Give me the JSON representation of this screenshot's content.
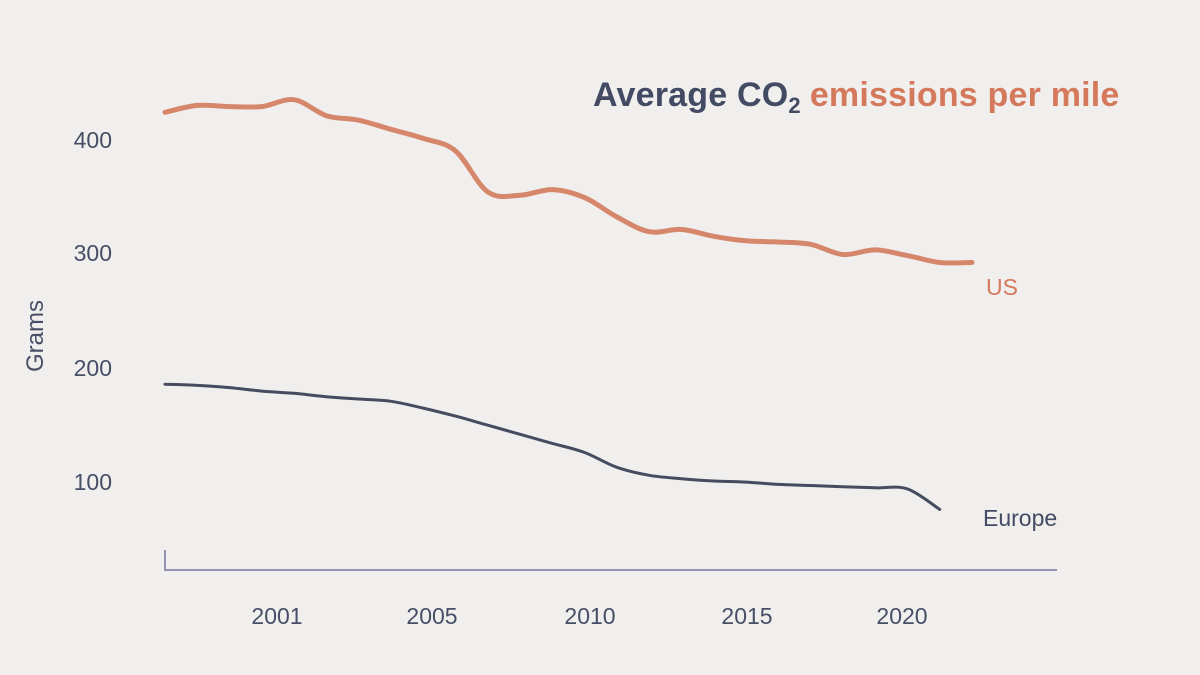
{
  "title": {
    "text_dark": "Average CO",
    "subscript": "2",
    "text_accent": "emissions per mile"
  },
  "y_axis": {
    "label": "Grams",
    "ticks": [
      "400",
      "300",
      "200",
      "100"
    ]
  },
  "x_axis": {
    "ticks": [
      "2001",
      "2005",
      "2010",
      "2015",
      "2020"
    ]
  },
  "series_labels": {
    "us": "US",
    "europe": "Europe"
  },
  "colors": {
    "background": "#f1efed",
    "navy": "#424b63",
    "accent": "#d5795c",
    "tick_text": "#474f67",
    "axis": "#9690b3",
    "us_line": "#d6876b",
    "europe_line": "#454c60"
  },
  "chart_data": {
    "type": "line",
    "title": "Average CO2 emissions per mile",
    "xlabel": "",
    "ylabel": "Grams",
    "y_ticks": [
      100,
      200,
      300,
      400
    ],
    "x_tick_years": [
      2001,
      2005,
      2010,
      2015,
      2020
    ],
    "ylim": [
      20,
      460
    ],
    "xlim": [
      1997,
      2022
    ],
    "grid": false,
    "legend_position": "end-of-line labels",
    "series": [
      {
        "name": "US",
        "color": "#d6876b",
        "stroke_width": 5,
        "years": [
          1997,
          1998,
          1999,
          2000,
          2001,
          2002,
          2003,
          2004,
          2005,
          2006,
          2007,
          2008,
          2009,
          2010,
          2011,
          2012,
          2013,
          2014,
          2015,
          2016,
          2017,
          2018,
          2019,
          2020,
          2021,
          2022
        ],
        "values": [
          425,
          431,
          430,
          430,
          436,
          422,
          418,
          410,
          402,
          391,
          355,
          352,
          357,
          350,
          333,
          320,
          322,
          316,
          312,
          311,
          309,
          300,
          304,
          299,
          293,
          293
        ]
      },
      {
        "name": "Europe",
        "color": "#454c60",
        "stroke_width": 3,
        "years": [
          1997,
          1998,
          1999,
          2000,
          2001,
          2002,
          2003,
          2004,
          2005,
          2006,
          2007,
          2008,
          2009,
          2010,
          2011,
          2012,
          2013,
          2014,
          2015,
          2016,
          2017,
          2018,
          2019,
          2020,
          2021
        ],
        "values": [
          186,
          185,
          183,
          180,
          178,
          175,
          173,
          171,
          165,
          158,
          150,
          142,
          134,
          126,
          113,
          106,
          103,
          101,
          100,
          98,
          97,
          96,
          95,
          94,
          76
        ]
      }
    ]
  }
}
